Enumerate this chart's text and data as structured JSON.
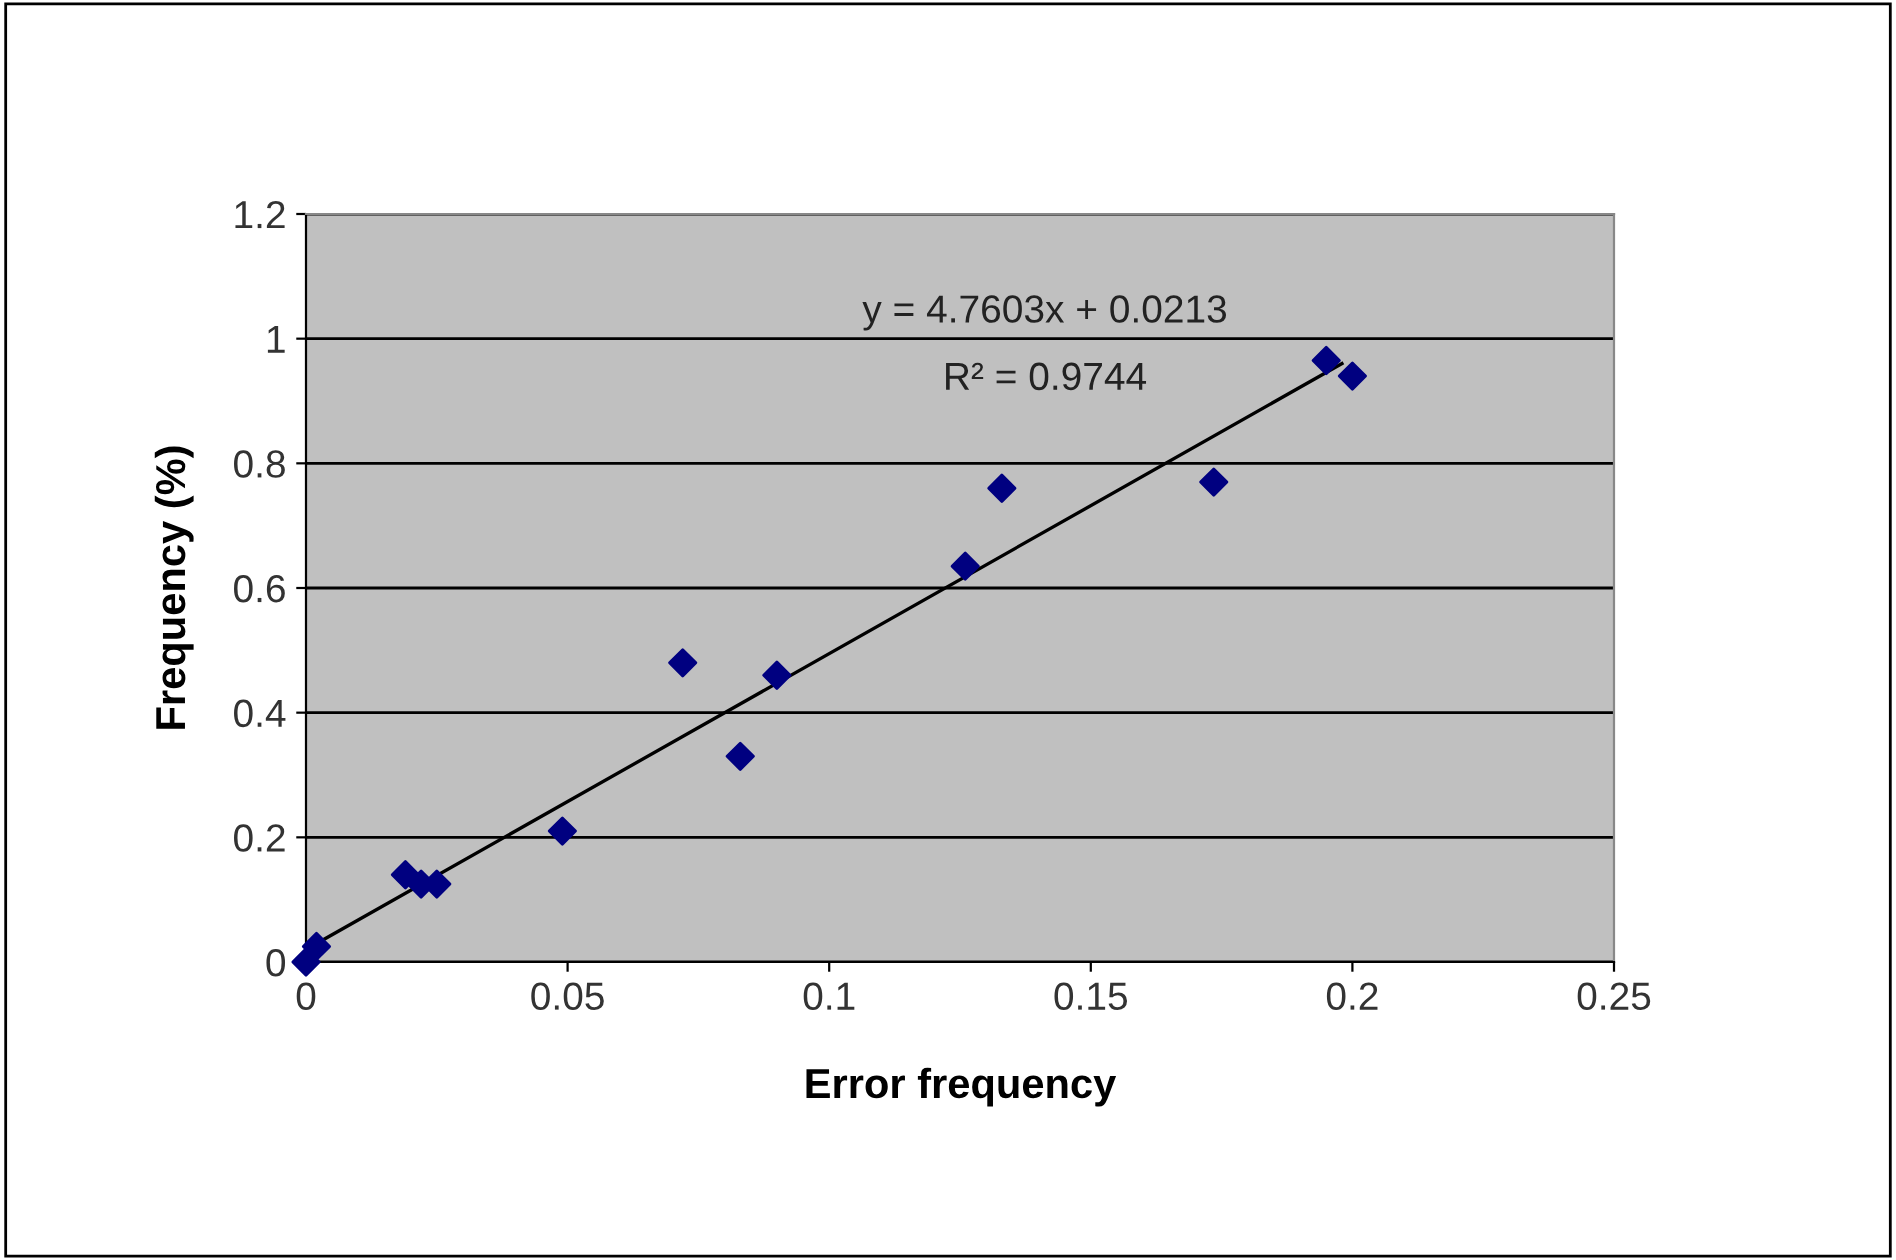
{
  "chart_data": {
    "type": "scatter",
    "xlabel": "Error frequency",
    "ylabel": "Frequency (%)",
    "series": [
      {
        "color": "#000080",
        "marker": "diamond",
        "x": [
          0,
          0.002,
          0.019,
          0.022,
          0.025,
          0.049,
          0.072,
          0.083,
          0.09,
          0.126,
          0.133,
          0.1735,
          0.195,
          0.2
        ],
        "values": [
          0,
          0.025,
          0.14,
          0.125,
          0.125,
          0.21,
          0.48,
          0.33,
          0.46,
          0.635,
          0.76,
          0.77,
          0.965,
          0.94
        ]
      },
      {
        "type": "line",
        "color": "#000000",
        "marker": "none",
        "x": [
          0,
          0.198
        ],
        "values": [
          0.02,
          0.96
        ]
      }
    ],
    "annotations": [
      "y = 4.7603x + 0.0213",
      "R² = 0.9744"
    ],
    "xlim": [
      0,
      0.25
    ],
    "xticks": [
      0,
      0.05,
      0.1,
      0.15,
      0.2,
      0.25
    ],
    "ylim": [
      0,
      1.2
    ],
    "yticks": [
      0,
      0.2,
      0.4,
      0.6,
      0.8,
      1,
      1.2
    ],
    "grid": "y"
  }
}
